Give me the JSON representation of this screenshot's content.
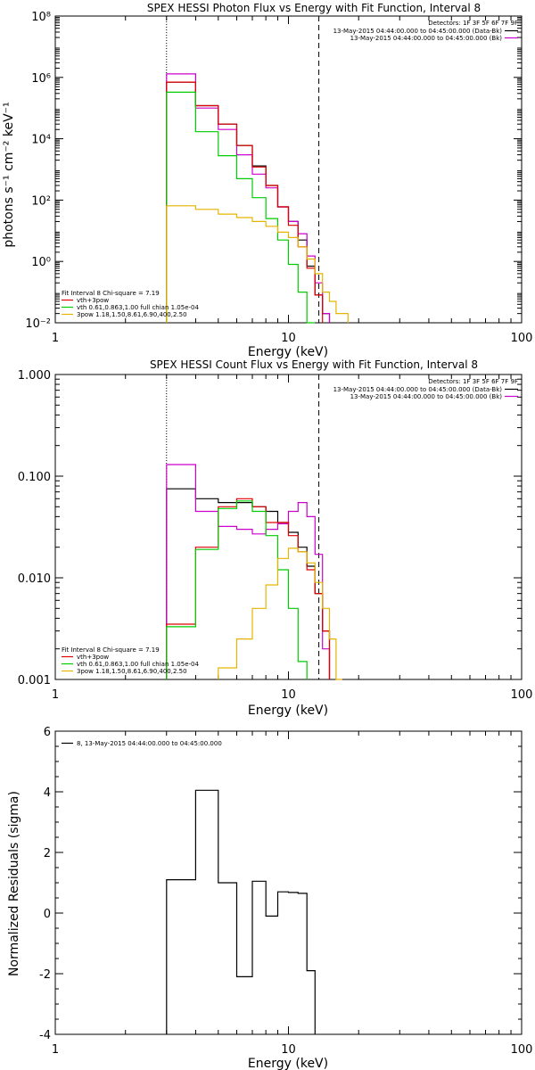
{
  "chart_data": [
    {
      "type": "line",
      "title": "SPEX HESSI Photon Flux vs Energy with Fit Function, Interval 8",
      "xlabel": "Energy (keV)",
      "ylabel": "photons s⁻¹ cm⁻² keV⁻¹",
      "xscale": "log",
      "yscale": "log",
      "xlim": [
        1,
        100
      ],
      "ylim": [
        0.01,
        100000000
      ],
      "x_ticks": [
        "1",
        "10",
        "100"
      ],
      "y_ticks": [
        "10⁻²",
        "10⁰",
        "10²",
        "10⁴",
        "10⁶",
        "10⁸"
      ],
      "detectors_label": "Detectors: 1F 3F 5F 6F 7F 9F",
      "legend_right": [
        {
          "name": "13-May-2015 04:44:00.000 to 04:45:00.000 (Data-Bk)",
          "color": "#000000"
        },
        {
          "name": "13-May-2015 04:44:00.000 to 04:45:00.000 (Bk)",
          "color": "#cc00cc"
        }
      ],
      "legend_left_header": "Fit Interval 8   Chi-square = 7.19",
      "legend_left": [
        {
          "name": "vth+3pow",
          "color": "#e00000"
        },
        {
          "name": "vth 0.61,0.863,1.00  full chian 1.05e-04",
          "color": "#00cc00"
        },
        {
          "name": "3pow 1.18,1.50,8.61,6.90,400,2.50",
          "color": "#e6b400"
        }
      ],
      "vlines": [
        {
          "x": 3,
          "style": "dotted"
        },
        {
          "x": 13.5,
          "style": "dashed"
        }
      ],
      "bin_edges": [
        3,
        4,
        5,
        6,
        7,
        8,
        9,
        10,
        11,
        12,
        13,
        14,
        15,
        16,
        18
      ],
      "series": [
        {
          "color": "#000000",
          "values": [
            700000,
            120000,
            30000,
            6000,
            1300,
            300,
            60,
            20,
            5,
            0.7,
            0.08,
            0.02,
            null,
            null
          ]
        },
        {
          "color": "#cc00cc",
          "values": [
            1300000,
            100000,
            20000,
            3000,
            700,
            250,
            60,
            20,
            8,
            1.5,
            0.2,
            0.02,
            null,
            null
          ]
        },
        {
          "color": "#e00000",
          "values": [
            700000,
            120000,
            30000,
            6000,
            1200,
            300,
            60,
            15,
            3,
            0.6,
            0.08,
            null,
            null,
            null
          ]
        },
        {
          "color": "#00cc00",
          "values": [
            330000,
            17000,
            2800,
            500,
            120,
            25,
            5,
            0.8,
            0.1,
            0.01,
            null,
            null,
            null,
            null
          ]
        },
        {
          "color": "#e6b400",
          "values": [
            65,
            50,
            35,
            27,
            20,
            14,
            9,
            6,
            3,
            1.2,
            0.4,
            0.1,
            0.05,
            0.02
          ]
        }
      ]
    },
    {
      "type": "line",
      "title": "SPEX HESSI Count Flux vs Energy with Fit Function, Interval 8",
      "xlabel": "Energy (keV)",
      "ylabel": "",
      "xscale": "log",
      "yscale": "log",
      "xlim": [
        1,
        100
      ],
      "ylim": [
        0.001,
        1
      ],
      "x_ticks": [
        "1",
        "10",
        "100"
      ],
      "y_ticks": [
        "0.001",
        "0.010",
        "0.100",
        "1.000"
      ],
      "detectors_label": "Detectors: 1F 3F 5F 6F 7F 9F",
      "legend_right": [
        {
          "name": "13-May-2015 04:44:00.000 to 04:45:00.000 (Data-Bk)",
          "color": "#000000"
        },
        {
          "name": "13-May-2015 04:44:00.000 to 04:45:00.000 (Bk)",
          "color": "#cc00cc"
        }
      ],
      "legend_left_header": "Fit Interval 8   Chi-square = 7.19",
      "legend_left": [
        {
          "name": "vth+3pow",
          "color": "#e00000"
        },
        {
          "name": "vth 0.61,0.863,1.00  full chian 1.05e-04",
          "color": "#00cc00"
        },
        {
          "name": "3pow 1.18,1.50,8.61,6.90,400,2.50",
          "color": "#e6b400"
        }
      ],
      "vlines": [
        {
          "x": 3,
          "style": "dotted"
        },
        {
          "x": 13.5,
          "style": "dashed"
        }
      ],
      "bin_edges": [
        3,
        4,
        5,
        6,
        7,
        8,
        9,
        10,
        11,
        12,
        13,
        14,
        15,
        16,
        17
      ],
      "series": [
        {
          "color": "#000000",
          "values": [
            0.075,
            0.06,
            0.055,
            0.055,
            0.05,
            0.045,
            0.035,
            0.028,
            0.02,
            0.013,
            0.007,
            0.003,
            null,
            null
          ]
        },
        {
          "color": "#cc00cc",
          "values": [
            0.13,
            0.045,
            0.032,
            0.03,
            0.027,
            0.03,
            0.034,
            0.045,
            0.055,
            0.04,
            0.017,
            0.002,
            null,
            null
          ]
        },
        {
          "color": "#e00000",
          "values": [
            0.0035,
            0.02,
            0.05,
            0.06,
            0.05,
            0.035,
            0.035,
            0.026,
            0.018,
            0.012,
            0.007,
            0.003,
            null,
            null
          ]
        },
        {
          "color": "#00cc00",
          "values": [
            0.0033,
            0.019,
            0.048,
            0.057,
            0.045,
            0.026,
            0.012,
            0.005,
            0.0015,
            null,
            null,
            null,
            null,
            null
          ]
        },
        {
          "color": "#e6b400",
          "values": [
            null,
            null,
            0.0013,
            0.0025,
            0.005,
            0.0085,
            0.0155,
            0.0195,
            0.018,
            0.014,
            0.009,
            0.005,
            0.0025,
            0.001
          ]
        }
      ]
    },
    {
      "type": "line",
      "title": "",
      "xlabel": "Energy (keV)",
      "ylabel": "Normalized Residuals (sigma)",
      "xscale": "log",
      "yscale": "linear",
      "xlim": [
        1,
        100
      ],
      "ylim": [
        -4,
        6
      ],
      "x_ticks": [
        "1",
        "10",
        "100"
      ],
      "y_ticks": [
        "-4",
        "-2",
        "0",
        "2",
        "4",
        "6"
      ],
      "legend_left_header": "8, 13-May-2015 04:44:00.000 to 04:45:00.000",
      "bin_edges": [
        3,
        4,
        5,
        6,
        7,
        8,
        9,
        10,
        11,
        12,
        13,
        14
      ],
      "series": [
        {
          "color": "#000000",
          "values": [
            1.1,
            4.05,
            1.0,
            -2.1,
            1.05,
            -0.1,
            0.7,
            0.68,
            0.65,
            -1.9,
            null
          ]
        }
      ]
    }
  ]
}
